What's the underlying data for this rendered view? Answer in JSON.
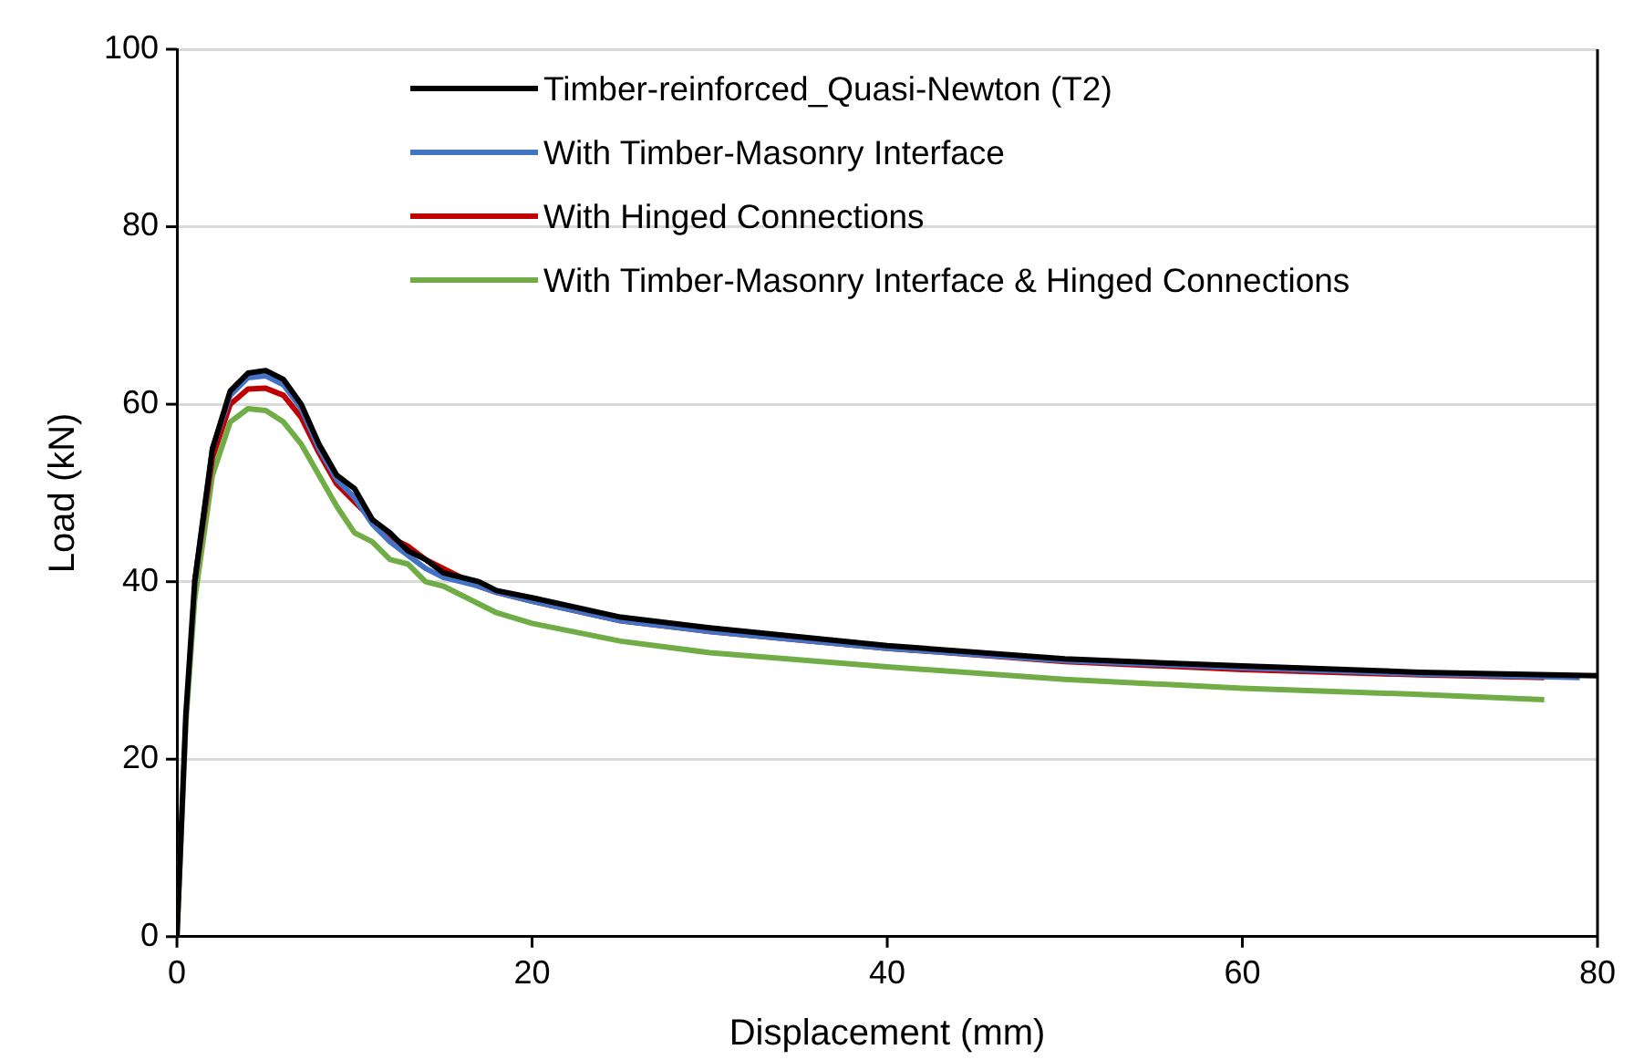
{
  "chart_data": {
    "type": "line",
    "xlabel": "Displacement (mm)",
    "ylabel": "Load (kN)",
    "xlim": [
      0,
      80
    ],
    "xticks": [
      0,
      20,
      40,
      60,
      80
    ],
    "ylim": [
      0,
      100
    ],
    "yticks": [
      0,
      20,
      40,
      60,
      80,
      100
    ],
    "grid": "y",
    "legend": "top right",
    "marker": "none",
    "line_style": "solid",
    "series": [
      {
        "name": "Timber-reinforced_Quasi-Newton (T2)",
        "color": "#000000",
        "x": [
          0,
          0.5,
          1,
          2,
          3,
          4,
          5,
          6,
          7,
          8,
          9,
          10,
          11,
          12,
          13,
          14,
          15,
          16,
          17,
          18,
          20,
          25,
          30,
          40,
          50,
          60,
          70,
          80
        ],
        "values": [
          0,
          25,
          40,
          55,
          61.5,
          63.5,
          63.8,
          62.8,
          60,
          55.5,
          52,
          50.5,
          47,
          45.5,
          43.5,
          42.5,
          41,
          40.5,
          40,
          39,
          38.2,
          36,
          34.8,
          32.8,
          31.3,
          30.5,
          29.8,
          29.4
        ]
      },
      {
        "name": "With Timber-Masonry Interface",
        "color": "#4472c4",
        "x": [
          1,
          2,
          3,
          4,
          5,
          6,
          7,
          8,
          9,
          10,
          11,
          12,
          13,
          14,
          15,
          16,
          17,
          18,
          20,
          25,
          30,
          40,
          50,
          60,
          70,
          79
        ],
        "values": [
          40,
          55,
          61,
          63,
          63.2,
          62.2,
          59.5,
          55,
          51.5,
          49.5,
          46.5,
          44.5,
          43,
          41.5,
          40.5,
          40,
          39.5,
          38.8,
          37.8,
          35.6,
          34.4,
          32.5,
          31.1,
          30.3,
          29.6,
          29.2
        ]
      },
      {
        "name": "With Hinged Connections",
        "color": "#c00000",
        "x": [
          1,
          2,
          3,
          4,
          5,
          6,
          7,
          8,
          9,
          10,
          11,
          12,
          13,
          14,
          15,
          16,
          17,
          18,
          20,
          25,
          30,
          40,
          50,
          60,
          70,
          77
        ],
        "values": [
          40,
          54,
          60,
          61.7,
          61.8,
          61,
          58.5,
          54.5,
          51,
          49,
          47,
          45,
          44,
          42.5,
          41.5,
          40.5,
          39.5,
          38.8,
          37.8,
          35.6,
          34.4,
          32.5,
          31,
          30.1,
          29.5,
          29.2
        ]
      },
      {
        "name": "With Timber-Masonry Interface & Hinged Connections",
        "color": "#70ad47",
        "x": [
          0,
          0.5,
          1,
          2,
          3,
          4,
          5,
          6,
          7,
          8,
          9,
          10,
          11,
          12,
          13,
          14,
          15,
          16,
          17,
          18,
          20,
          25,
          30,
          40,
          50,
          60,
          70,
          77
        ],
        "values": [
          0,
          24,
          38,
          52,
          58,
          59.5,
          59.3,
          58,
          55.5,
          52,
          48.5,
          45.5,
          44.5,
          42.5,
          42,
          40,
          39.5,
          38.5,
          37.5,
          36.5,
          35.3,
          33.3,
          32,
          30.4,
          29,
          28,
          27.3,
          26.7
        ]
      }
    ]
  }
}
